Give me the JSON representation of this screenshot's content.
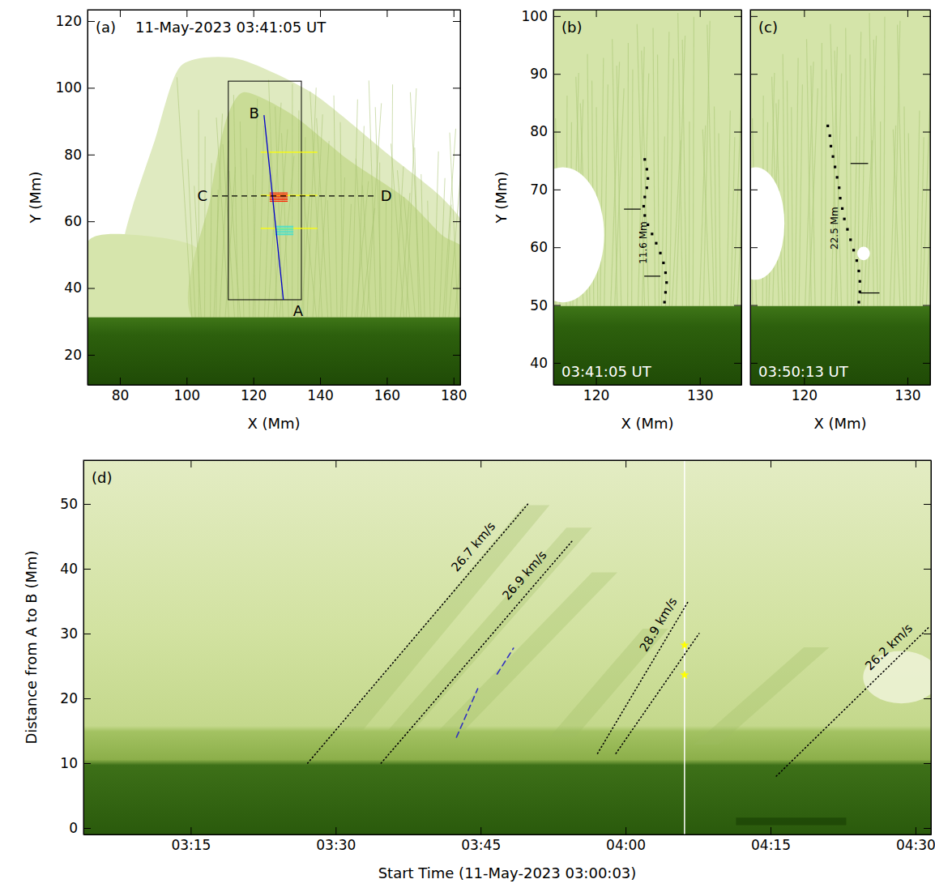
{
  "chart_data": [
    {
      "type": "image",
      "title": "(a)",
      "subtitle": "11-May-2023 03:41:05 UT",
      "xlabel": "X (Mm)",
      "ylabel": "Y (Mm)",
      "xlim": [
        70.3,
        182
      ],
      "ylim": [
        11,
        123.4
      ],
      "xticks": [
        80,
        100,
        120,
        140,
        160,
        180
      ],
      "yticks": [
        20,
        40,
        60,
        80,
        100,
        120
      ],
      "box": {
        "x": [
          112.5,
          134.4
        ],
        "y": [
          36.5,
          102
        ],
        "color": "#000000"
      },
      "cut_AB": {
        "x": [
          129.0,
          123.2
        ],
        "y": [
          36.5,
          91.8
        ],
        "labels": [
          "A",
          "B"
        ],
        "color": "#0000cc"
      },
      "cut_CD": {
        "x": [
          107.7,
          156.2
        ],
        "y": [
          67.6,
          67.6
        ],
        "labels": [
          "C",
          "D"
        ],
        "color": "#000000",
        "line_style": "dashed"
      },
      "yellow_cuts": {
        "y": [
          80.7,
          67.8,
          57.9
        ],
        "x": [
          122.2,
          139.2
        ],
        "color": "#ffff00"
      },
      "red_cuts": {
        "y": [
          66.0,
          66.5,
          67.0,
          67.5,
          68.0,
          68.5
        ],
        "x": [
          124.9,
          130.3
        ],
        "color": "#ff2000"
      },
      "cyan_cuts": {
        "y": [
          56.0,
          56.5,
          57.0,
          57.5,
          58.0,
          58.5
        ],
        "x": [
          126.6,
          132.0
        ],
        "color": "#40e0d0"
      }
    },
    {
      "type": "image",
      "title": "(b)",
      "subtitle": "03:41:05 UT",
      "xlabel": "X (Mm)",
      "ylabel": "Y (Mm)",
      "xlim": [
        115.9,
        134
      ],
      "ylim": [
        36.2,
        101.1
      ],
      "xticks": [
        120,
        130
      ],
      "yticks": [
        40,
        50,
        60,
        70,
        80,
        90,
        100
      ],
      "trace": {
        "x": [
          126.6,
          126.7,
          126.8,
          126.7,
          126.5,
          126.2,
          125.8,
          125.4,
          125.0,
          124.7,
          124.6,
          124.7,
          124.9,
          125.0,
          124.9,
          124.7
        ],
        "y": [
          50.5,
          52.2,
          53.9,
          55.6,
          57.3,
          59.0,
          60.7,
          62.3,
          63.9,
          65.5,
          67.1,
          68.7,
          70.3,
          71.9,
          73.5,
          75.2
        ],
        "color": "#000000",
        "marker": "dot"
      },
      "measure": {
        "label": "11.6 Mm",
        "ticks": [
          {
            "y": 66.6,
            "x": [
              122.7,
              124.3
            ]
          },
          {
            "y": 55.0,
            "x": [
              124.65,
              126.2
            ]
          }
        ],
        "color": "#000000"
      }
    },
    {
      "type": "image",
      "title": "(c)",
      "subtitle": "03:50:13 UT",
      "xlabel": "X (Mm)",
      "tick_labels": "x",
      "xlim": [
        114.8,
        132.2
      ],
      "ylim": [
        36.2,
        101.1
      ],
      "xticks": [
        120,
        130
      ],
      "yticks": [
        40,
        50,
        60,
        70,
        80,
        90,
        100
      ],
      "trace": {
        "x": [
          125.3,
          125.4,
          125.4,
          125.3,
          125.1,
          124.8,
          124.5,
          124.2,
          123.9,
          123.7,
          123.5,
          123.4,
          123.2,
          123.0,
          122.8,
          122.6,
          122.5,
          122.3
        ],
        "y": [
          50.5,
          52.3,
          54.1,
          55.9,
          57.7,
          59.5,
          61.3,
          63.1,
          64.9,
          66.7,
          68.5,
          70.3,
          72.1,
          73.9,
          75.7,
          77.5,
          79.3,
          81.0
        ],
        "color": "#000000",
        "marker": "dot"
      },
      "measure": {
        "label": "22.5 Mm",
        "ticks": [
          {
            "y": 74.5,
            "x": [
              124.5,
              126.2
            ]
          },
          {
            "y": 52.1,
            "x": [
              125.4,
              127.3
            ]
          }
        ],
        "color": "#000000"
      }
    },
    {
      "type": "line",
      "title": "(d)",
      "xlabel": "Start Time (11-May-2023 03:00:03)",
      "ylabel": "Distance from A to B (Mm)",
      "xlim": [
        3.9,
        91.6
      ],
      "ylim": [
        -1,
        56.75
      ],
      "xticks": [
        {
          "value": 15,
          "label": "03:15"
        },
        {
          "value": 30,
          "label": "03:30"
        },
        {
          "value": 45,
          "label": "03:45"
        },
        {
          "value": 60,
          "label": "04:00"
        },
        {
          "value": 75,
          "label": "04:15"
        },
        {
          "value": 90,
          "label": "04:30"
        }
      ],
      "yticks": [
        0,
        10,
        20,
        30,
        40,
        50
      ],
      "series": [
        {
          "x": [
            27.1,
            49.9
          ],
          "values": [
            10,
            50
          ],
          "color": "#000000",
          "line_style": "dotted",
          "label": "26.7 km/s"
        },
        {
          "x": [
            34.7,
            54.6
          ],
          "values": [
            10,
            44.5
          ],
          "color": "#000000",
          "line_style": "dotted",
          "label": "26.9 km/s"
        },
        {
          "x": [
            57.1,
            66.5
          ],
          "values": [
            11.5,
            35
          ],
          "color": "#000000",
          "line_style": "dotted",
          "label": "28.9 km/s"
        },
        {
          "x": [
            59.0,
            67.6
          ],
          "values": [
            11.5,
            30
          ],
          "color": "#000000",
          "line_style": "dotted"
        },
        {
          "x": [
            75.6,
            91.4
          ],
          "values": [
            8,
            31
          ],
          "color": "#000000",
          "line_style": "dotted",
          "label": "26.2 km/s"
        },
        {
          "x": [
            42.5,
            44.7
          ],
          "values": [
            14,
            21.5
          ],
          "color": "#3030c0",
          "line_style": "dashed"
        },
        {
          "x": [
            46.7,
            48.4
          ],
          "values": [
            23.75,
            27.75
          ],
          "color": "#3030c0",
          "line_style": "dashed"
        }
      ],
      "vline": {
        "x": 66.1,
        "color": "#ffffff"
      },
      "points": {
        "x": [
          66.1,
          66.1
        ],
        "values": [
          28.2,
          23.6
        ],
        "color": "#ffff00",
        "marker": "star"
      }
    }
  ]
}
